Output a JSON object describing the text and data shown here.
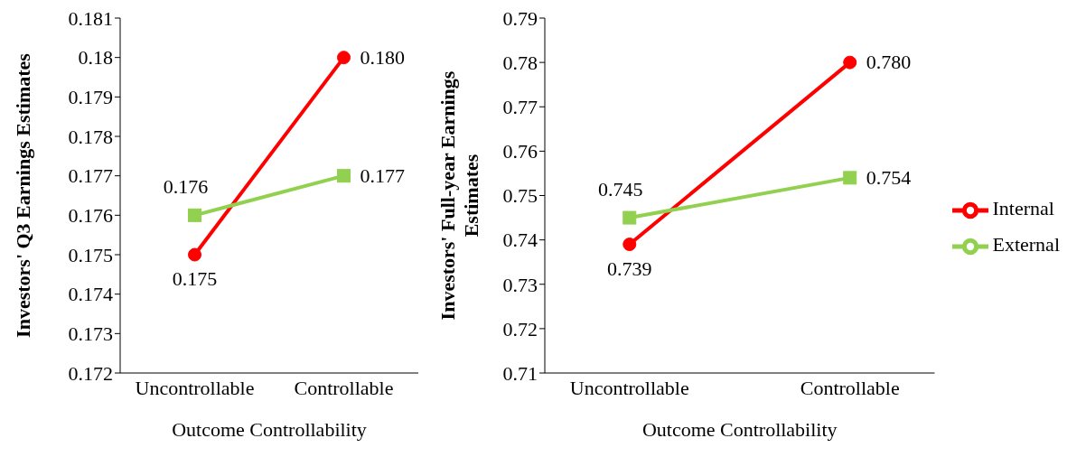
{
  "chart_data": [
    {
      "type": "line",
      "ylabel": "Investors' Q3 Earnings Estimates",
      "xlabel": "Outcome Controllability",
      "categories": [
        "Uncontrollable",
        "Controllable"
      ],
      "series": [
        {
          "color": "#ff0000",
          "marker": "circle",
          "values": [
            0.175,
            0.18
          ],
          "value_labels": [
            "0.175",
            "0.180"
          ]
        },
        {
          "color": "#92d050",
          "marker": "square",
          "values": [
            0.176,
            0.177
          ],
          "value_labels": [
            "0.176",
            "0.177"
          ]
        }
      ],
      "ylim": [
        0.172,
        0.181
      ],
      "yticks": [
        0.172,
        0.173,
        0.174,
        0.175,
        0.176,
        0.177,
        0.178,
        0.179,
        0.18,
        0.181
      ],
      "grid": false,
      "legend": false
    },
    {
      "type": "line",
      "ylabel": "Investors' Full-year Earnings Estimates",
      "xlabel": "Outcome Controllability",
      "categories": [
        "Uncontrollable",
        "Controllable"
      ],
      "series": [
        {
          "name": "Internal",
          "color": "#ff0000",
          "marker": "circle",
          "values": [
            0.739,
            0.78
          ],
          "value_labels": [
            "0.739",
            "0.780"
          ]
        },
        {
          "name": "External",
          "color": "#92d050",
          "marker": "square",
          "values": [
            0.745,
            0.754
          ],
          "value_labels": [
            "0.745",
            "0.754"
          ]
        }
      ],
      "ylim": [
        0.71,
        0.79
      ],
      "yticks": [
        0.71,
        0.72,
        0.73,
        0.74,
        0.75,
        0.76,
        0.77,
        0.78,
        0.79
      ],
      "grid": false,
      "legend": "right"
    }
  ]
}
